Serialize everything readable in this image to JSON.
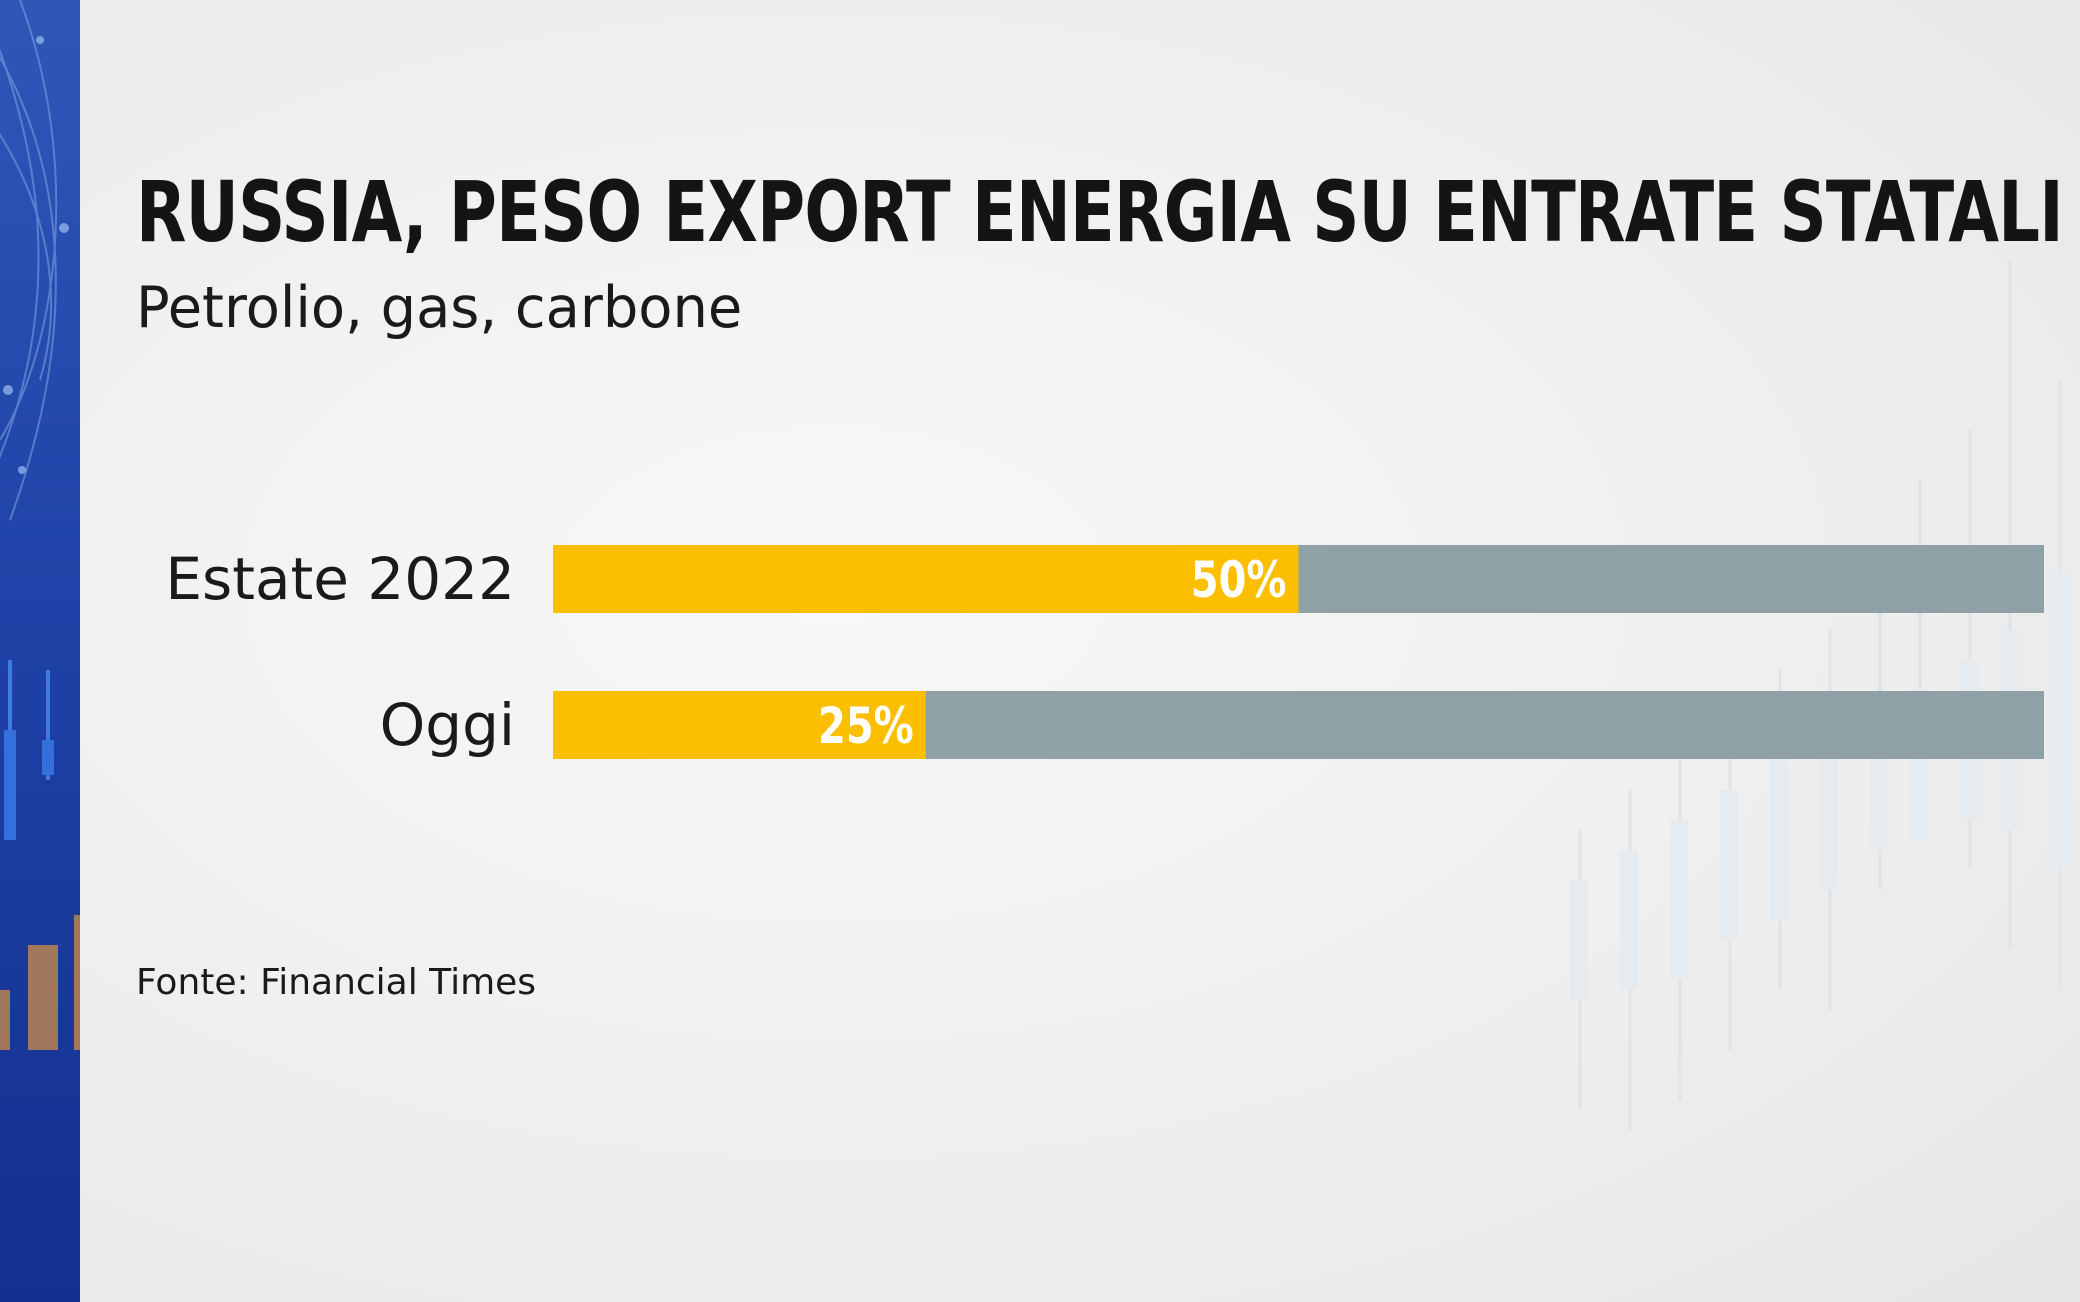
{
  "title": "RUSSIA, PESO EXPORT ENERGIA SU ENTRATE STATALI",
  "subtitle": "Petrolio, gas, carbone",
  "source": "Fonte: Financial Times",
  "colors": {
    "bar_fill": "#fbbf00",
    "bar_track": "#8fa1a6",
    "side_panel": "#2447ab",
    "text": "#1a1a1a"
  },
  "chart_data": {
    "type": "bar",
    "orientation": "horizontal",
    "title": "RUSSIA, PESO EXPORT ENERGIA SU ENTRATE STATALI",
    "subtitle": "Petrolio, gas, carbone",
    "categories": [
      "Estate 2022",
      "Oggi"
    ],
    "values": [
      50,
      25
    ],
    "value_labels": [
      "50%",
      "25%"
    ],
    "xlim": [
      0,
      100
    ],
    "unit": "%",
    "xlabel": "",
    "ylabel": "",
    "grid": false,
    "legend": "none"
  }
}
